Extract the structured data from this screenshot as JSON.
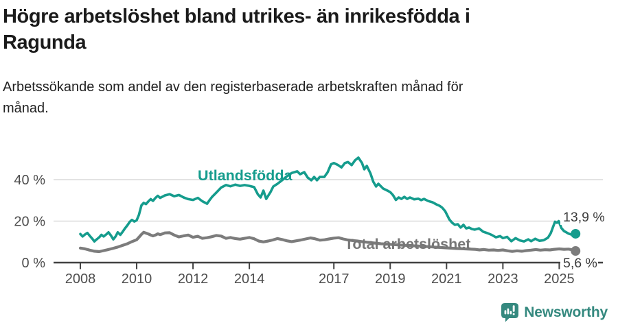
{
  "header": {
    "title": "Högre arbetslöshet bland utrikes- än inrikesfödda i Ragunda",
    "title_lines": [
      "Högre arbetslöshet bland utrikes- än inrikesfödda i",
      "Ragunda"
    ],
    "subtitle": "Arbetssökande som andel av den registerbaserade arbetskraften månad för månad.",
    "subtitle_lines": [
      "Arbetssökande som andel av den registerbaserade arbetskraften månad för",
      "månad."
    ]
  },
  "footer": {
    "brand": "Newsworthy",
    "logo_icon": "newsworthy-speech-bubble-barchart-icon",
    "brand_color": "#35897f"
  },
  "colors": {
    "accent_teal": "#159c8d",
    "series_gray": "#7c7c7c",
    "gridline": "#dadada",
    "axis": "#414141",
    "tick_text": "#4d4d4d",
    "value_text": "#3c3c3c",
    "annotation_gray": "#767676",
    "background": "#ffffff"
  },
  "chart_data": {
    "type": "line",
    "title": "Högre arbetslöshet bland utrikes- än inrikesfödda i Ragunda",
    "subtitle": "Arbetssökande som andel av den registerbaserade arbetskraften månad för månad.",
    "xlabel": "",
    "ylabel": "",
    "grid": "horizontal",
    "legend_position": "inline-annotations",
    "xlim": [
      2007.05,
      2026.55
    ],
    "ylim": [
      0,
      54
    ],
    "x_ticks": [
      2008,
      2010,
      2012,
      2014,
      2017,
      2019,
      2021,
      2023,
      2025
    ],
    "y_ticks": [
      {
        "value": 0,
        "label": "0 %"
      },
      {
        "value": 20,
        "label": "20 %"
      },
      {
        "value": 40,
        "label": "40 %"
      }
    ],
    "series": [
      {
        "name": "Utlandsfödda",
        "color": "#159c8d",
        "stroke_width": 3.6,
        "label_pos": {
          "x": 2012.17,
          "y": 39.7
        },
        "label_color": "#159c8d",
        "end_label": "13,9 %",
        "end_value": 13.9,
        "end_label_side": "above",
        "points": [
          [
            2008.0,
            13.8
          ],
          [
            2008.08,
            12.6
          ],
          [
            2008.17,
            13.6
          ],
          [
            2008.25,
            14.3
          ],
          [
            2008.33,
            13.0
          ],
          [
            2008.42,
            11.6
          ],
          [
            2008.5,
            10.2
          ],
          [
            2008.58,
            11.2
          ],
          [
            2008.67,
            12.2
          ],
          [
            2008.75,
            13.4
          ],
          [
            2008.83,
            12.6
          ],
          [
            2008.92,
            13.6
          ],
          [
            2009.0,
            14.6
          ],
          [
            2009.08,
            13.2
          ],
          [
            2009.17,
            11.2
          ],
          [
            2009.25,
            12.6
          ],
          [
            2009.33,
            14.6
          ],
          [
            2009.42,
            13.4
          ],
          [
            2009.5,
            14.8
          ],
          [
            2009.58,
            16.4
          ],
          [
            2009.67,
            18.0
          ],
          [
            2009.75,
            19.6
          ],
          [
            2009.83,
            20.6
          ],
          [
            2009.92,
            19.8
          ],
          [
            2010.0,
            20.4
          ],
          [
            2010.08,
            23.0
          ],
          [
            2010.17,
            27.6
          ],
          [
            2010.25,
            28.8
          ],
          [
            2010.33,
            28.2
          ],
          [
            2010.42,
            29.6
          ],
          [
            2010.5,
            30.6
          ],
          [
            2010.58,
            29.8
          ],
          [
            2010.67,
            31.2
          ],
          [
            2010.75,
            32.2
          ],
          [
            2010.83,
            31.2
          ],
          [
            2010.92,
            31.8
          ],
          [
            2011.0,
            32.4
          ],
          [
            2011.17,
            33.0
          ],
          [
            2011.33,
            32.0
          ],
          [
            2011.5,
            32.6
          ],
          [
            2011.67,
            31.4
          ],
          [
            2011.83,
            30.6
          ],
          [
            2012.0,
            30.2
          ],
          [
            2012.17,
            31.2
          ],
          [
            2012.33,
            29.6
          ],
          [
            2012.5,
            28.4
          ],
          [
            2012.58,
            30.0
          ],
          [
            2012.67,
            31.6
          ],
          [
            2012.83,
            33.8
          ],
          [
            2013.0,
            36.2
          ],
          [
            2013.17,
            37.4
          ],
          [
            2013.33,
            36.8
          ],
          [
            2013.5,
            37.6
          ],
          [
            2013.67,
            37.0
          ],
          [
            2013.83,
            37.4
          ],
          [
            2014.0,
            37.0
          ],
          [
            2014.17,
            36.4
          ],
          [
            2014.3,
            33.0
          ],
          [
            2014.4,
            31.4
          ],
          [
            2014.5,
            34.7
          ],
          [
            2014.6,
            30.7
          ],
          [
            2014.75,
            34.0
          ],
          [
            2014.85,
            36.7
          ],
          [
            2015.0,
            38.0
          ],
          [
            2015.17,
            39.8
          ],
          [
            2015.33,
            41.6
          ],
          [
            2015.5,
            43.2
          ],
          [
            2015.7,
            44.0
          ],
          [
            2015.8,
            42.6
          ],
          [
            2015.95,
            43.6
          ],
          [
            2016.07,
            41.0
          ],
          [
            2016.2,
            39.7
          ],
          [
            2016.3,
            41.3
          ],
          [
            2016.4,
            39.7
          ],
          [
            2016.5,
            41.3
          ],
          [
            2016.66,
            41.3
          ],
          [
            2016.78,
            43.6
          ],
          [
            2016.9,
            47.4
          ],
          [
            2017.0,
            48.0
          ],
          [
            2017.15,
            47.0
          ],
          [
            2017.27,
            45.9
          ],
          [
            2017.39,
            48.0
          ],
          [
            2017.5,
            48.5
          ],
          [
            2017.63,
            47.0
          ],
          [
            2017.75,
            49.3
          ],
          [
            2017.87,
            50.6
          ],
          [
            2018.0,
            48.0
          ],
          [
            2018.08,
            45.0
          ],
          [
            2018.17,
            46.6
          ],
          [
            2018.3,
            43.0
          ],
          [
            2018.4,
            39.0
          ],
          [
            2018.5,
            36.7
          ],
          [
            2018.58,
            38.0
          ],
          [
            2018.75,
            35.7
          ],
          [
            2018.9,
            34.7
          ],
          [
            2019.0,
            34.0
          ],
          [
            2019.1,
            32.5
          ],
          [
            2019.2,
            30.2
          ],
          [
            2019.3,
            31.4
          ],
          [
            2019.4,
            30.7
          ],
          [
            2019.5,
            31.7
          ],
          [
            2019.6,
            30.7
          ],
          [
            2019.7,
            31.4
          ],
          [
            2019.85,
            30.5
          ],
          [
            2020.0,
            30.8
          ],
          [
            2020.1,
            30.1
          ],
          [
            2020.2,
            30.7
          ],
          [
            2020.35,
            29.7
          ],
          [
            2020.5,
            29.1
          ],
          [
            2020.65,
            28.0
          ],
          [
            2020.75,
            27.4
          ],
          [
            2020.85,
            26.4
          ],
          [
            2020.95,
            24.8
          ],
          [
            2021.0,
            23.5
          ],
          [
            2021.1,
            20.8
          ],
          [
            2021.2,
            19.2
          ],
          [
            2021.3,
            18.2
          ],
          [
            2021.4,
            18.5
          ],
          [
            2021.5,
            16.9
          ],
          [
            2021.6,
            18.2
          ],
          [
            2021.7,
            16.5
          ],
          [
            2021.8,
            16.9
          ],
          [
            2021.9,
            16.2
          ],
          [
            2022.0,
            15.9
          ],
          [
            2022.15,
            16.5
          ],
          [
            2022.3,
            14.9
          ],
          [
            2022.45,
            14.2
          ],
          [
            2022.6,
            13.4
          ],
          [
            2022.75,
            12.2
          ],
          [
            2022.9,
            12.8
          ],
          [
            2023.0,
            11.8
          ],
          [
            2023.15,
            12.4
          ],
          [
            2023.3,
            10.3
          ],
          [
            2023.45,
            11.8
          ],
          [
            2023.6,
            10.7
          ],
          [
            2023.75,
            10.2
          ],
          [
            2023.9,
            11.2
          ],
          [
            2024.0,
            10.3
          ],
          [
            2024.15,
            11.5
          ],
          [
            2024.3,
            10.5
          ],
          [
            2024.45,
            10.8
          ],
          [
            2024.6,
            12.0
          ],
          [
            2024.7,
            14.2
          ],
          [
            2024.78,
            17.2
          ],
          [
            2024.85,
            19.7
          ],
          [
            2024.92,
            19.2
          ],
          [
            2024.98,
            20.0
          ],
          [
            2025.08,
            16.6
          ],
          [
            2025.17,
            15.2
          ],
          [
            2025.25,
            14.6
          ],
          [
            2025.33,
            14.0
          ],
          [
            2025.42,
            13.6
          ],
          [
            2025.5,
            13.3
          ],
          [
            2025.58,
            13.9
          ]
        ]
      },
      {
        "name": "Total arbetslöshet",
        "color": "#7c7c7c",
        "stroke_width": 4.2,
        "label_pos": {
          "x": 2017.38,
          "y": 6.6
        },
        "label_color": "#767676",
        "end_label": "5,6 %",
        "end_value": 5.6,
        "end_label_side": "below",
        "points": [
          [
            2008.0,
            7.0
          ],
          [
            2008.17,
            6.6
          ],
          [
            2008.33,
            6.0
          ],
          [
            2008.5,
            5.5
          ],
          [
            2008.67,
            5.3
          ],
          [
            2008.83,
            5.8
          ],
          [
            2009.0,
            6.3
          ],
          [
            2009.17,
            6.9
          ],
          [
            2009.33,
            7.5
          ],
          [
            2009.5,
            8.3
          ],
          [
            2009.67,
            9.1
          ],
          [
            2009.83,
            10.1
          ],
          [
            2010.0,
            11.0
          ],
          [
            2010.08,
            12.2
          ],
          [
            2010.17,
            13.6
          ],
          [
            2010.25,
            14.6
          ],
          [
            2010.33,
            14.2
          ],
          [
            2010.42,
            13.8
          ],
          [
            2010.5,
            13.3
          ],
          [
            2010.58,
            12.9
          ],
          [
            2010.67,
            13.3
          ],
          [
            2010.75,
            13.9
          ],
          [
            2010.83,
            13.5
          ],
          [
            2010.92,
            13.9
          ],
          [
            2011.0,
            14.3
          ],
          [
            2011.17,
            14.4
          ],
          [
            2011.33,
            13.3
          ],
          [
            2011.5,
            12.4
          ],
          [
            2011.67,
            12.9
          ],
          [
            2011.83,
            13.3
          ],
          [
            2012.0,
            12.2
          ],
          [
            2012.17,
            12.7
          ],
          [
            2012.33,
            11.7
          ],
          [
            2012.5,
            12.0
          ],
          [
            2012.67,
            12.5
          ],
          [
            2012.83,
            13.1
          ],
          [
            2013.0,
            12.8
          ],
          [
            2013.17,
            11.7
          ],
          [
            2013.33,
            12.1
          ],
          [
            2013.5,
            11.6
          ],
          [
            2013.67,
            11.3
          ],
          [
            2013.83,
            11.7
          ],
          [
            2014.0,
            12.1
          ],
          [
            2014.17,
            11.5
          ],
          [
            2014.33,
            10.4
          ],
          [
            2014.5,
            10.0
          ],
          [
            2014.67,
            10.4
          ],
          [
            2014.83,
            10.9
          ],
          [
            2015.0,
            11.6
          ],
          [
            2015.17,
            11.1
          ],
          [
            2015.33,
            10.5
          ],
          [
            2015.5,
            10.1
          ],
          [
            2015.67,
            10.5
          ],
          [
            2015.83,
            10.9
          ],
          [
            2016.0,
            11.4
          ],
          [
            2016.17,
            11.9
          ],
          [
            2016.33,
            11.5
          ],
          [
            2016.5,
            10.8
          ],
          [
            2016.67,
            11.0
          ],
          [
            2016.83,
            11.4
          ],
          [
            2017.0,
            11.8
          ],
          [
            2017.17,
            12.0
          ],
          [
            2017.33,
            11.4
          ],
          [
            2017.5,
            10.9
          ],
          [
            2017.67,
            10.6
          ],
          [
            2017.83,
            10.4
          ],
          [
            2018.0,
            10.1
          ],
          [
            2018.33,
            9.6
          ],
          [
            2018.67,
            9.1
          ],
          [
            2019.0,
            8.8
          ],
          [
            2019.33,
            8.5
          ],
          [
            2019.67,
            8.2
          ],
          [
            2020.0,
            8.0
          ],
          [
            2020.33,
            7.7
          ],
          [
            2020.67,
            7.4
          ],
          [
            2021.0,
            7.1
          ],
          [
            2021.33,
            6.8
          ],
          [
            2021.67,
            6.6
          ],
          [
            2022.0,
            6.4
          ],
          [
            2022.17,
            6.1
          ],
          [
            2022.33,
            6.3
          ],
          [
            2022.5,
            6.0
          ],
          [
            2022.67,
            6.1
          ],
          [
            2022.83,
            5.9
          ],
          [
            2023.0,
            6.1
          ],
          [
            2023.17,
            5.7
          ],
          [
            2023.33,
            5.4
          ],
          [
            2023.5,
            5.7
          ],
          [
            2023.67,
            5.5
          ],
          [
            2023.83,
            5.8
          ],
          [
            2024.0,
            6.0
          ],
          [
            2024.17,
            6.3
          ],
          [
            2024.33,
            6.0
          ],
          [
            2024.5,
            6.2
          ],
          [
            2024.67,
            6.1
          ],
          [
            2024.83,
            6.4
          ],
          [
            2025.0,
            6.6
          ],
          [
            2025.17,
            6.4
          ],
          [
            2025.33,
            6.5
          ],
          [
            2025.45,
            6.2
          ],
          [
            2025.58,
            5.6
          ]
        ]
      }
    ]
  }
}
